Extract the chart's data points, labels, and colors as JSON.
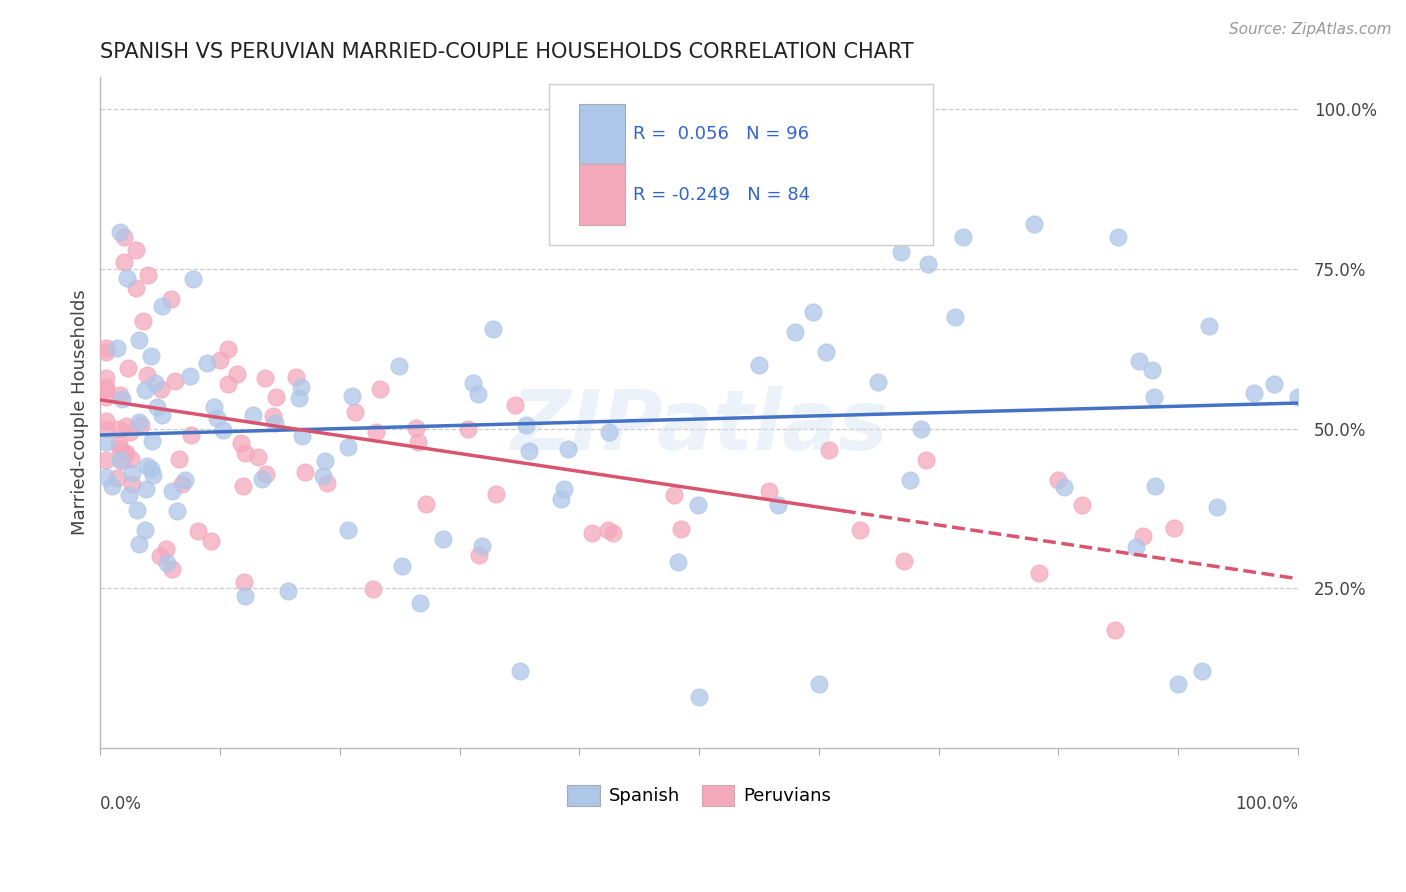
{
  "title": "SPANISH VS PERUVIAN MARRIED-COUPLE HOUSEHOLDS CORRELATION CHART",
  "source": "Source: ZipAtlas.com",
  "ylabel": "Married-couple Households",
  "legend_spanish": "Spanish",
  "legend_peruvians": "Peruvians",
  "R_spanish": 0.056,
  "N_spanish": 96,
  "R_peruvians": -0.249,
  "N_peruvians": 84,
  "spanish_color": "#aec6e8",
  "peruvian_color": "#f4a8bc",
  "spanish_line_color": "#4472c4",
  "peruvian_line_color": "#d9546e",
  "background_color": "#ffffff",
  "watermark": "ZIPatlas",
  "ytick_vals": [
    0.25,
    0.5,
    0.75,
    1.0
  ],
  "ytick_labels": [
    "25.0%",
    "50.0%",
    "75.0%",
    "100.0%"
  ]
}
